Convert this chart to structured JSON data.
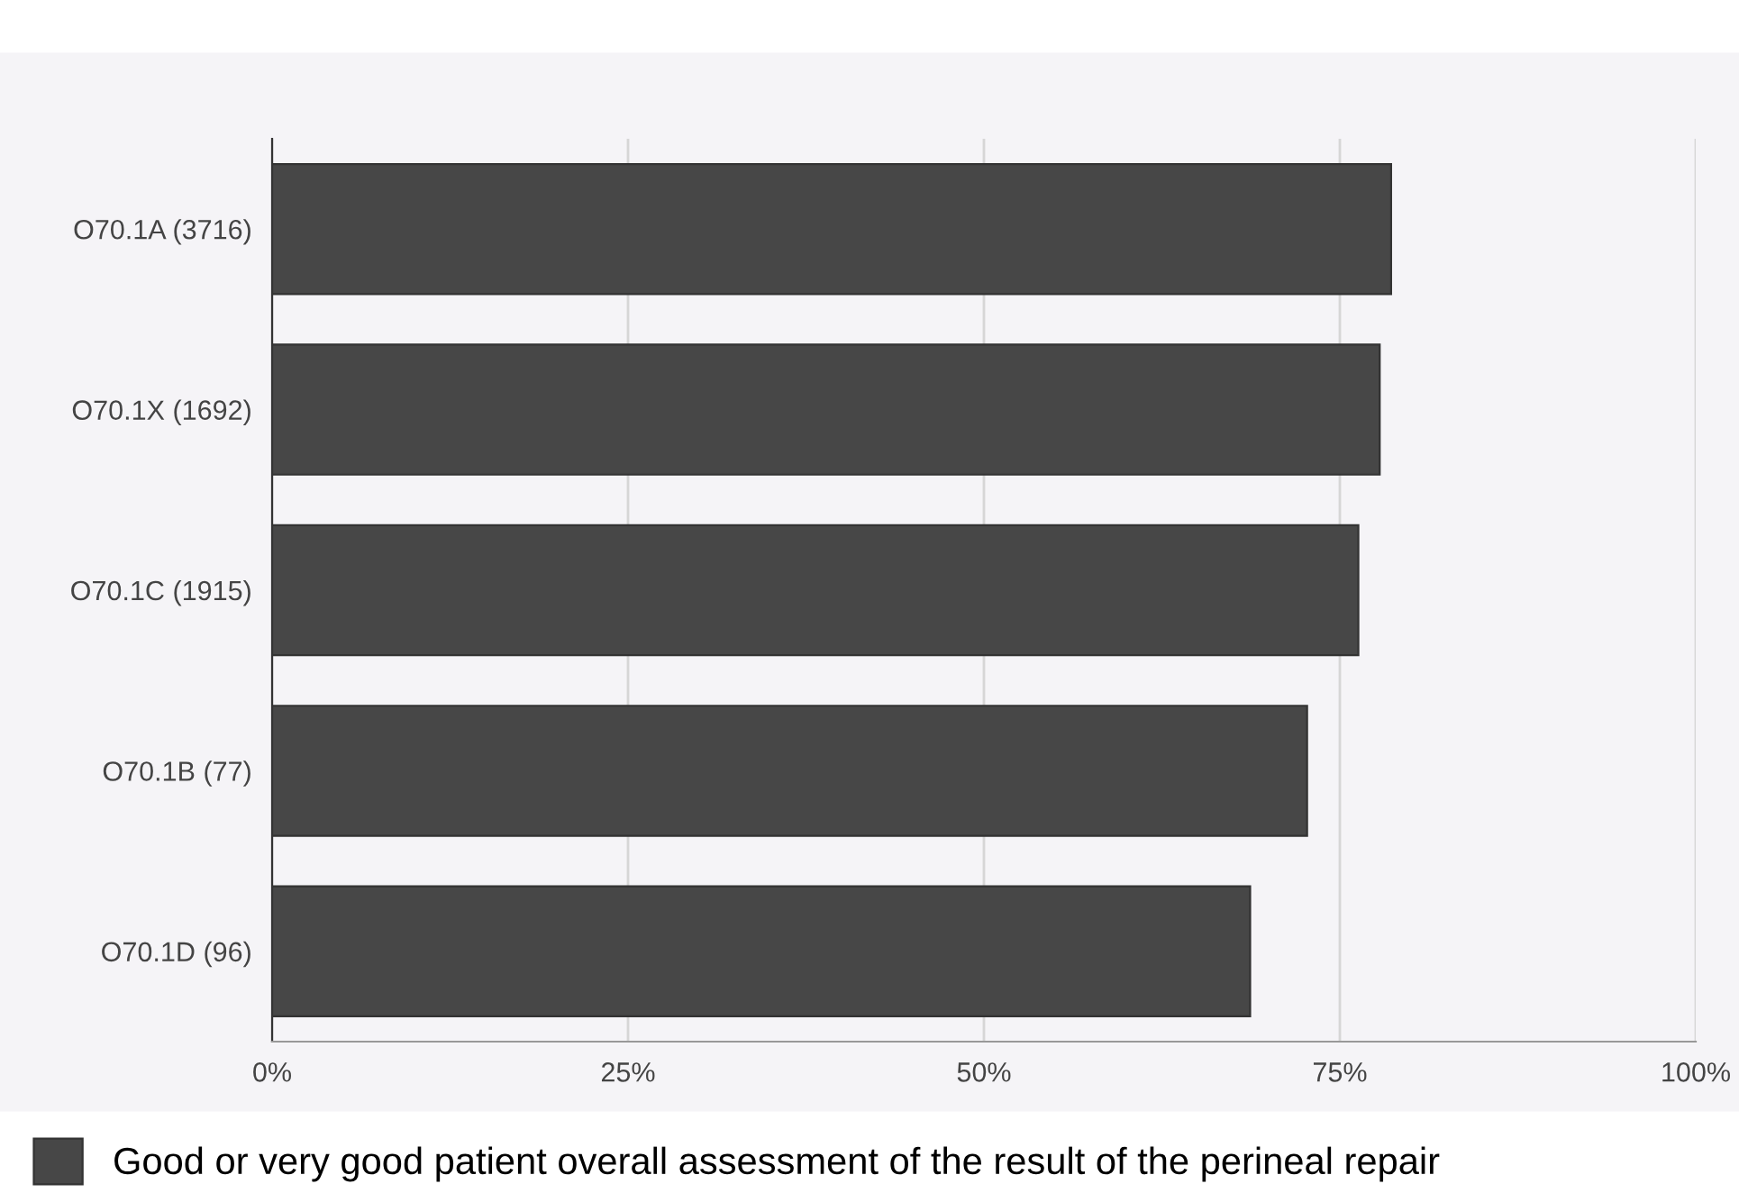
{
  "chart_data": {
    "type": "bar",
    "orientation": "horizontal",
    "categories": [
      "O70.1A (3716)",
      "O70.1X (1692)",
      "O70.1C (1915)",
      "O70.1B (77)",
      "O70.1D (96)"
    ],
    "series": [
      {
        "name": "Good or very good patient overall assessment of the result of the perineal repair",
        "color": "#474747",
        "values": [
          78.6,
          77.8,
          76.3,
          72.7,
          68.7
        ]
      }
    ],
    "xlim": [
      0,
      100
    ],
    "xticks": [
      {
        "value": 0,
        "label": "0%"
      },
      {
        "value": 25,
        "label": "25%"
      },
      {
        "value": 50,
        "label": "50%"
      },
      {
        "value": 75,
        "label": "75%"
      },
      {
        "value": 100,
        "label": "100%"
      }
    ],
    "grid": "x",
    "legend": "bottom left"
  }
}
